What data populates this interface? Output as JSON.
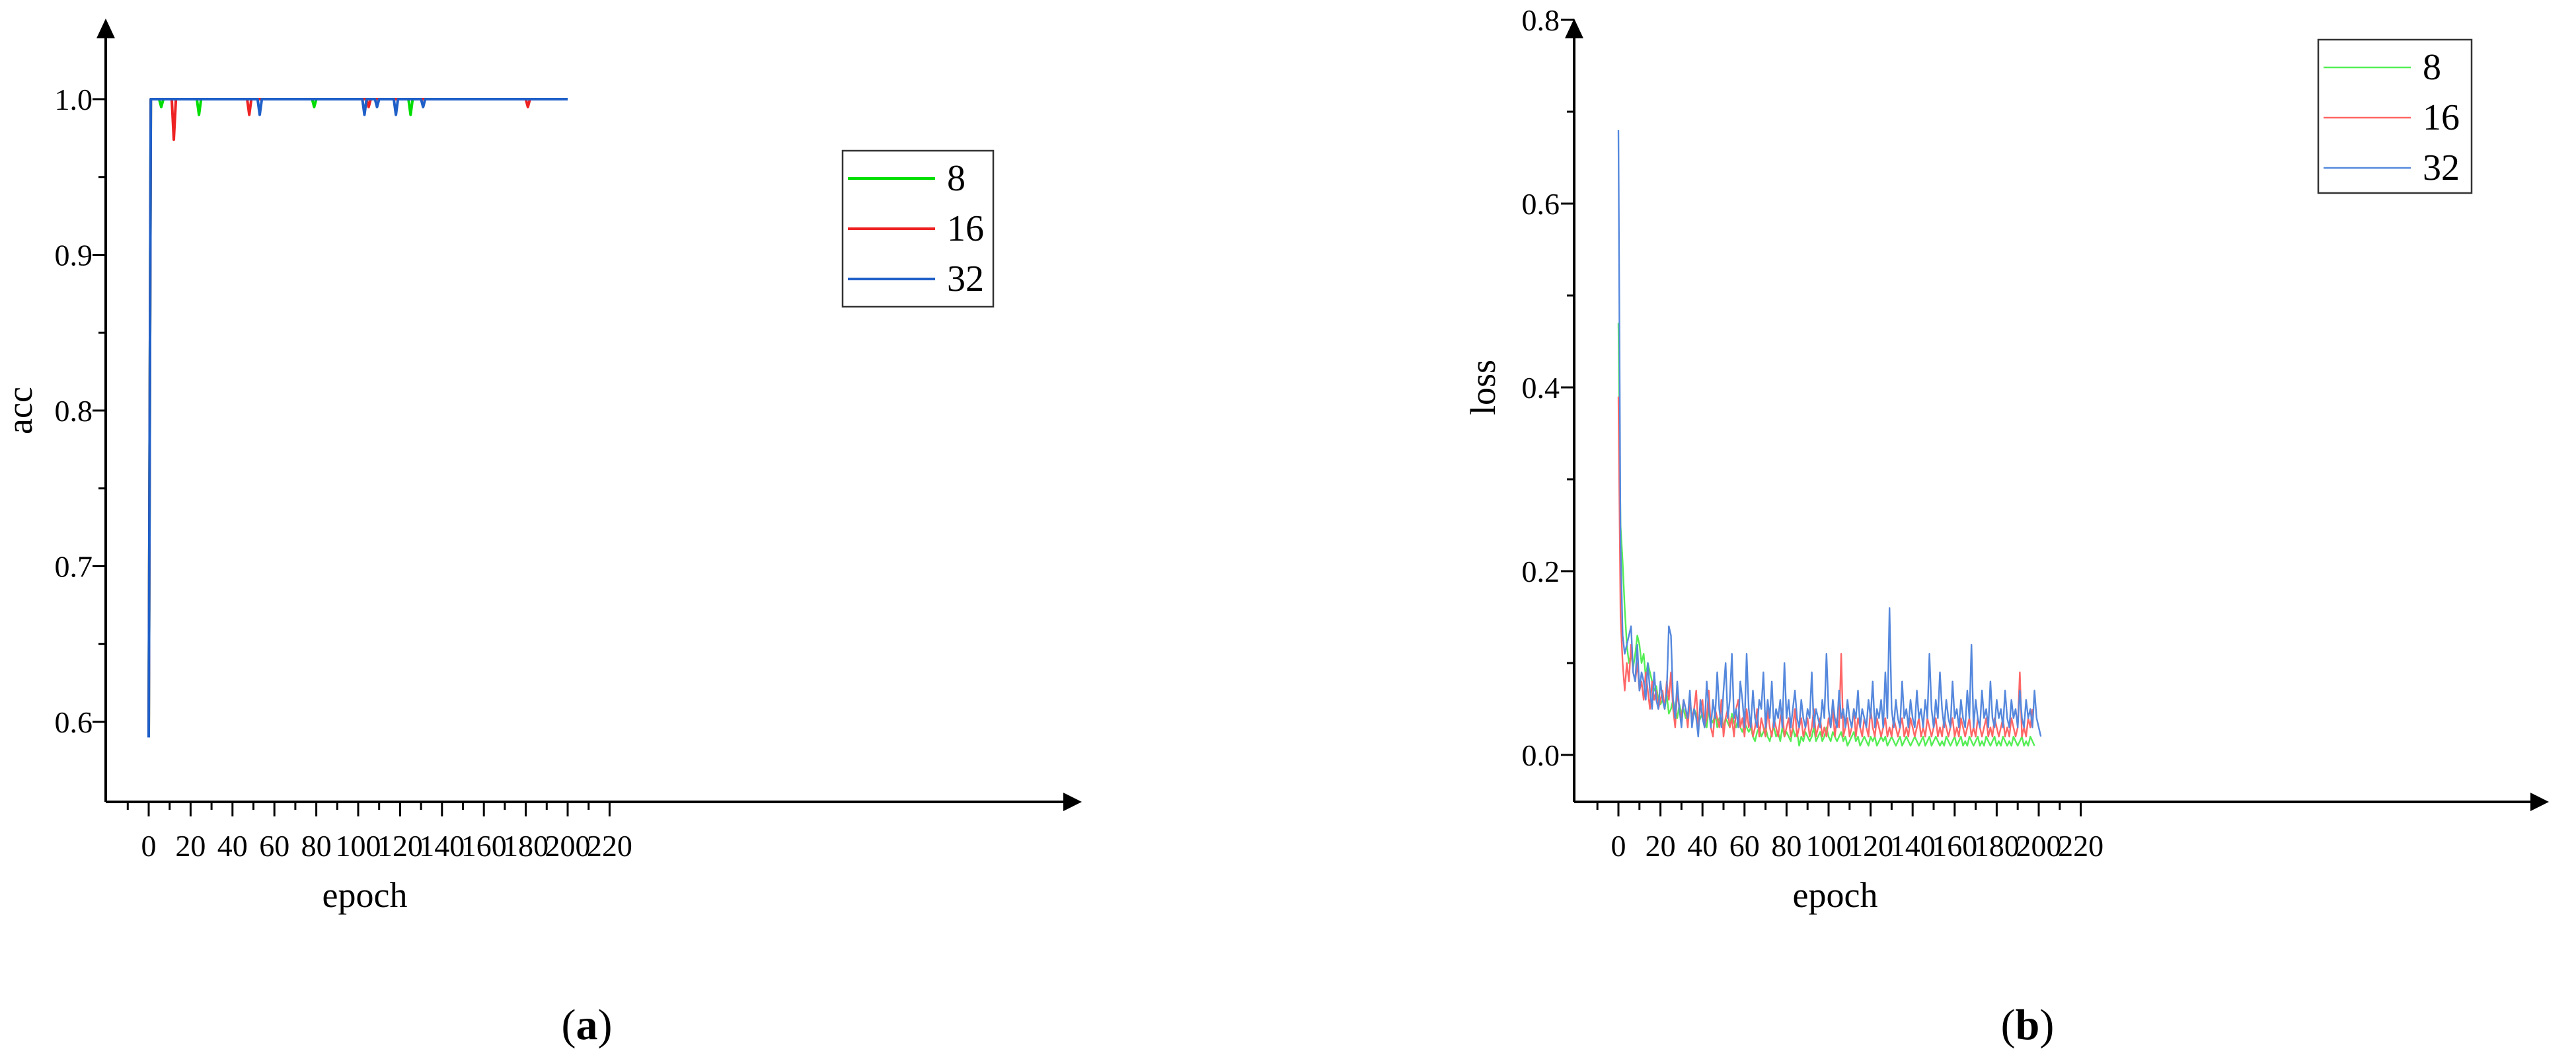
{
  "chart_data": [
    {
      "type": "line",
      "panel_label": "a",
      "xlabel": "epoch",
      "ylabel": "acc",
      "xlim": [
        -10,
        220
      ],
      "ylim": [
        0.57,
        1.05
      ],
      "xticks": [
        "0",
        "20",
        "40",
        "60",
        "80",
        "100",
        "120",
        "140",
        "160",
        "180",
        "200",
        "220"
      ],
      "yticks": [
        "0.6",
        "0.7",
        "0.8",
        "0.9",
        "1.0"
      ],
      "legend_position": "upper-right",
      "series": [
        {
          "name": "8",
          "color": "#00dd00",
          "points": [
            [
              0,
              0.59
            ],
            [
              1,
              1.0
            ],
            [
              5,
              1.0
            ],
            [
              6,
              0.995
            ],
            [
              7,
              1.0
            ],
            [
              23,
              1.0
            ],
            [
              24,
              0.99
            ],
            [
              25,
              1.0
            ],
            [
              78,
              1.0
            ],
            [
              79,
              0.995
            ],
            [
              80,
              1.0
            ],
            [
              124,
              1.0
            ],
            [
              125,
              0.99
            ],
            [
              126,
              1.0
            ],
            [
              200,
              1.0
            ]
          ]
        },
        {
          "name": "16",
          "color": "#ee2222",
          "points": [
            [
              0,
              0.59
            ],
            [
              1,
              1.0
            ],
            [
              11,
              1.0
            ],
            [
              12,
              0.974
            ],
            [
              13,
              1.0
            ],
            [
              47,
              1.0
            ],
            [
              48,
              0.99
            ],
            [
              49,
              1.0
            ],
            [
              104,
              1.0
            ],
            [
              105,
              0.995
            ],
            [
              106,
              1.0
            ],
            [
              180,
              1.0
            ],
            [
              181,
              0.995
            ],
            [
              182,
              1.0
            ],
            [
              200,
              1.0
            ]
          ]
        },
        {
          "name": "32",
          "color": "#1f5fc8",
          "points": [
            [
              0,
              0.59
            ],
            [
              1,
              1.0
            ],
            [
              52,
              1.0
            ],
            [
              53,
              0.99
            ],
            [
              54,
              1.0
            ],
            [
              102,
              1.0
            ],
            [
              103,
              0.99
            ],
            [
              104,
              1.0
            ],
            [
              108,
              1.0
            ],
            [
              109,
              0.995
            ],
            [
              110,
              1.0
            ],
            [
              117,
              1.0
            ],
            [
              118,
              0.99
            ],
            [
              119,
              1.0
            ],
            [
              130,
              1.0
            ],
            [
              131,
              0.995
            ],
            [
              132,
              1.0
            ],
            [
              200,
              1.0
            ]
          ]
        }
      ]
    },
    {
      "type": "line",
      "panel_label": "b",
      "xlabel": "epoch",
      "ylabel": "loss",
      "xlim": [
        -10,
        220
      ],
      "ylim": [
        -0.05,
        0.8
      ],
      "xticks": [
        "0",
        "20",
        "40",
        "60",
        "80",
        "100",
        "120",
        "140",
        "160",
        "180",
        "200",
        "220"
      ],
      "yticks": [
        "0.0",
        "0.2",
        "0.4",
        "0.6",
        "0.8"
      ],
      "legend_position": "top-right",
      "series": [
        {
          "name": "8",
          "color": "#55ee55",
          "values": [
            0.47,
            0.25,
            0.21,
            0.16,
            0.12,
            0.1,
            0.11,
            0.095,
            0.11,
            0.13,
            0.12,
            0.1,
            0.11,
            0.085,
            0.1,
            0.09,
            0.08,
            0.07,
            0.075,
            0.06,
            0.055,
            0.06,
            0.05,
            0.065,
            0.045,
            0.05,
            0.06,
            0.05,
            0.04,
            0.055,
            0.045,
            0.05,
            0.04,
            0.045,
            0.055,
            0.04,
            0.05,
            0.045,
            0.035,
            0.04,
            0.045,
            0.04,
            0.03,
            0.05,
            0.04,
            0.035,
            0.045,
            0.03,
            0.04,
            0.035,
            0.03,
            0.04,
            0.035,
            0.03,
            0.045,
            0.035,
            0.03,
            0.04,
            0.03,
            0.025,
            0.035,
            0.03,
            0.025,
            0.03,
            0.02,
            0.015,
            0.025,
            0.03,
            0.02,
            0.025,
            0.03,
            0.02,
            0.015,
            0.025,
            0.03,
            0.02,
            0.025,
            0.015,
            0.03,
            0.02,
            0.025,
            0.02,
            0.015,
            0.03,
            0.02,
            0.025,
            0.01,
            0.02,
            0.015,
            0.025,
            0.02,
            0.015,
            0.02,
            0.03,
            0.015,
            0.02,
            0.025,
            0.015,
            0.02,
            0.03,
            0.02,
            0.015,
            0.025,
            0.02,
            0.015,
            0.02,
            0.025,
            0.015,
            0.02,
            0.01,
            0.015,
            0.02,
            0.025,
            0.015,
            0.02,
            0.01,
            0.015,
            0.02,
            0.015,
            0.01,
            0.02,
            0.015,
            0.02,
            0.01,
            0.015,
            0.02,
            0.015,
            0.02,
            0.01,
            0.015,
            0.02,
            0.015,
            0.01,
            0.015,
            0.02,
            0.01,
            0.015,
            0.02,
            0.015,
            0.01,
            0.015,
            0.02,
            0.015,
            0.01,
            0.015,
            0.02,
            0.01,
            0.015,
            0.02,
            0.01,
            0.015,
            0.02,
            0.015,
            0.01,
            0.015,
            0.01,
            0.02,
            0.015,
            0.01,
            0.015,
            0.02,
            0.01,
            0.015,
            0.02,
            0.01,
            0.015,
            0.01,
            0.02,
            0.015,
            0.01,
            0.015,
            0.02,
            0.01,
            0.015,
            0.01,
            0.02,
            0.015,
            0.01,
            0.015,
            0.02,
            0.01,
            0.015,
            0.01,
            0.02,
            0.015,
            0.01,
            0.015,
            0.01,
            0.02,
            0.015,
            0.01,
            0.015,
            0.02,
            0.01,
            0.015,
            0.01,
            0.02,
            0.015,
            0.01
          ]
        },
        {
          "name": "16",
          "color": "#ff6666",
          "values": [
            0.39,
            0.15,
            0.1,
            0.07,
            0.1,
            0.08,
            0.12,
            0.09,
            0.08,
            0.1,
            0.07,
            0.08,
            0.06,
            0.09,
            0.07,
            0.05,
            0.08,
            0.06,
            0.07,
            0.05,
            0.06,
            0.07,
            0.05,
            0.08,
            0.06,
            0.09,
            0.05,
            0.03,
            0.07,
            0.05,
            0.04,
            0.06,
            0.05,
            0.03,
            0.06,
            0.04,
            0.05,
            0.07,
            0.03,
            0.05,
            0.06,
            0.03,
            0.04,
            0.07,
            0.03,
            0.02,
            0.05,
            0.04,
            0.03,
            0.06,
            0.02,
            0.04,
            0.05,
            0.03,
            0.04,
            0.02,
            0.05,
            0.06,
            0.03,
            0.04,
            0.02,
            0.05,
            0.03,
            0.04,
            0.02,
            0.03,
            0.05,
            0.02,
            0.04,
            0.03,
            0.02,
            0.05,
            0.03,
            0.02,
            0.04,
            0.03,
            0.02,
            0.04,
            0.05,
            0.02,
            0.03,
            0.04,
            0.02,
            0.03,
            0.05,
            0.02,
            0.03,
            0.04,
            0.02,
            0.03,
            0.04,
            0.02,
            0.03,
            0.05,
            0.02,
            0.03,
            0.04,
            0.02,
            0.03,
            0.02,
            0.04,
            0.03,
            0.05,
            0.02,
            0.04,
            0.03,
            0.11,
            0.02,
            0.03,
            0.04,
            0.02,
            0.03,
            0.05,
            0.02,
            0.04,
            0.03,
            0.02,
            0.04,
            0.03,
            0.02,
            0.05,
            0.03,
            0.02,
            0.04,
            0.03,
            0.02,
            0.03,
            0.04,
            0.02,
            0.03,
            0.02,
            0.04,
            0.03,
            0.02,
            0.03,
            0.04,
            0.02,
            0.03,
            0.02,
            0.04,
            0.03,
            0.02,
            0.03,
            0.04,
            0.02,
            0.03,
            0.02,
            0.04,
            0.03,
            0.02,
            0.03,
            0.04,
            0.02,
            0.03,
            0.02,
            0.04,
            0.03,
            0.02,
            0.03,
            0.04,
            0.02,
            0.03,
            0.02,
            0.04,
            0.03,
            0.02,
            0.03,
            0.04,
            0.02,
            0.03,
            0.02,
            0.04,
            0.03,
            0.02,
            0.03,
            0.04,
            0.02,
            0.03,
            0.02,
            0.04,
            0.03,
            0.02,
            0.03,
            0.04,
            0.02,
            0.03,
            0.02,
            0.04,
            0.03,
            0.02,
            0.03,
            0.09,
            0.02,
            0.03,
            0.02,
            0.04,
            0.03,
            0.05
          ]
        },
        {
          "name": "32",
          "color": "#5588dd",
          "values": [
            0.68,
            0.23,
            0.13,
            0.11,
            0.12,
            0.13,
            0.14,
            0.09,
            0.08,
            0.12,
            0.07,
            0.09,
            0.08,
            0.06,
            0.1,
            0.07,
            0.05,
            0.09,
            0.06,
            0.05,
            0.08,
            0.06,
            0.05,
            0.07,
            0.14,
            0.13,
            0.06,
            0.04,
            0.08,
            0.05,
            0.03,
            0.06,
            0.05,
            0.04,
            0.07,
            0.03,
            0.05,
            0.04,
            0.02,
            0.06,
            0.04,
            0.03,
            0.08,
            0.05,
            0.03,
            0.06,
            0.04,
            0.09,
            0.05,
            0.03,
            0.07,
            0.1,
            0.04,
            0.06,
            0.11,
            0.04,
            0.05,
            0.03,
            0.08,
            0.06,
            0.03,
            0.11,
            0.05,
            0.03,
            0.07,
            0.04,
            0.03,
            0.06,
            0.05,
            0.09,
            0.03,
            0.06,
            0.04,
            0.08,
            0.03,
            0.05,
            0.04,
            0.06,
            0.03,
            0.1,
            0.04,
            0.06,
            0.03,
            0.05,
            0.07,
            0.04,
            0.03,
            0.06,
            0.04,
            0.03,
            0.05,
            0.04,
            0.09,
            0.03,
            0.05,
            0.04,
            0.03,
            0.06,
            0.04,
            0.11,
            0.05,
            0.03,
            0.06,
            0.04,
            0.03,
            0.07,
            0.04,
            0.05,
            0.03,
            0.06,
            0.04,
            0.03,
            0.05,
            0.04,
            0.07,
            0.03,
            0.05,
            0.04,
            0.03,
            0.06,
            0.04,
            0.08,
            0.03,
            0.05,
            0.04,
            0.06,
            0.03,
            0.09,
            0.04,
            0.16,
            0.05,
            0.03,
            0.06,
            0.04,
            0.03,
            0.08,
            0.04,
            0.05,
            0.03,
            0.06,
            0.04,
            0.03,
            0.07,
            0.04,
            0.05,
            0.03,
            0.06,
            0.04,
            0.11,
            0.05,
            0.03,
            0.06,
            0.04,
            0.09,
            0.05,
            0.03,
            0.06,
            0.04,
            0.03,
            0.08,
            0.04,
            0.05,
            0.03,
            0.06,
            0.04,
            0.03,
            0.07,
            0.04,
            0.12,
            0.03,
            0.06,
            0.04,
            0.03,
            0.07,
            0.04,
            0.05,
            0.03,
            0.08,
            0.04,
            0.03,
            0.06,
            0.04,
            0.05,
            0.03,
            0.07,
            0.04,
            0.03,
            0.06,
            0.04,
            0.05,
            0.03,
            0.07,
            0.04,
            0.03,
            0.06,
            0.04,
            0.05,
            0.03,
            0.07,
            0.04,
            0.03,
            0.02
          ]
        }
      ]
    }
  ]
}
